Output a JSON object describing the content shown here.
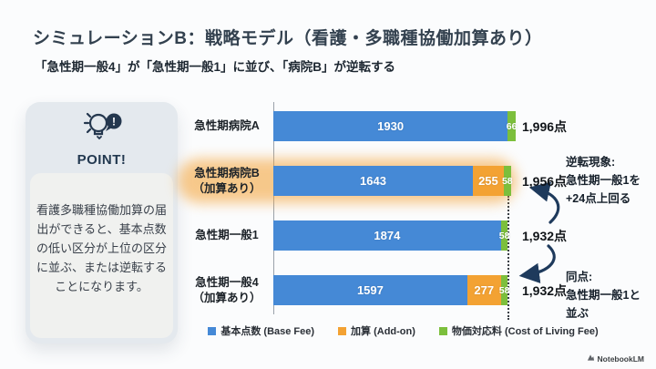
{
  "slide": {
    "title": "シミュレーションB：戦略モデル（看護・多職種協働加算あり）",
    "subtitle": "「急性期一般4」が「急性期一般1」に並び、「病院B」が逆転する"
  },
  "point_card": {
    "label": "POINT!",
    "body": "看護多職種協働加算の届出ができると、基本点数の低い区分が上位の区分に並ぶ、または逆転することになります。"
  },
  "chart_data": {
    "type": "bar",
    "orientation": "horizontal",
    "categories": [
      "急性期病院A",
      "急性期病院B\n（加算あり）",
      "急性期一般1",
      "急性期一般4\n（加算あり）"
    ],
    "series": [
      {
        "name": "基本点数 (Base Fee)",
        "color": "#4589d6",
        "values": [
          1930,
          1643,
          1874,
          1597
        ]
      },
      {
        "name": "加算 (Add-on)",
        "color": "#f3a233",
        "values": [
          0,
          255,
          0,
          277
        ]
      },
      {
        "name": "物価対応料 (Cost of Living Fee)",
        "color": "#7cbf3c",
        "values": [
          66,
          58,
          58,
          58
        ]
      }
    ],
    "totals": [
      "1,996点",
      "1,956点",
      "1,932点",
      "1,932点"
    ],
    "highlighted_category": "急性期病院B（加算あり）",
    "highlight_color": "#f4a338",
    "xmax": 1996,
    "reference_line_value": 1932,
    "legend_position": "bottom",
    "grid": false
  },
  "annotations": [
    {
      "text": "逆転現象:\n急性期一般1を\n+24点上回る"
    },
    {
      "text": "同点:\n急性期一般1と\n並ぶ"
    }
  ],
  "colors": {
    "arrow": "#1e3a5c",
    "title": "#33414f",
    "card_bg": "#e4e9ee",
    "inner_card_bg": "#f0f1ef"
  },
  "footer": {
    "brand": "NotebookLM"
  }
}
